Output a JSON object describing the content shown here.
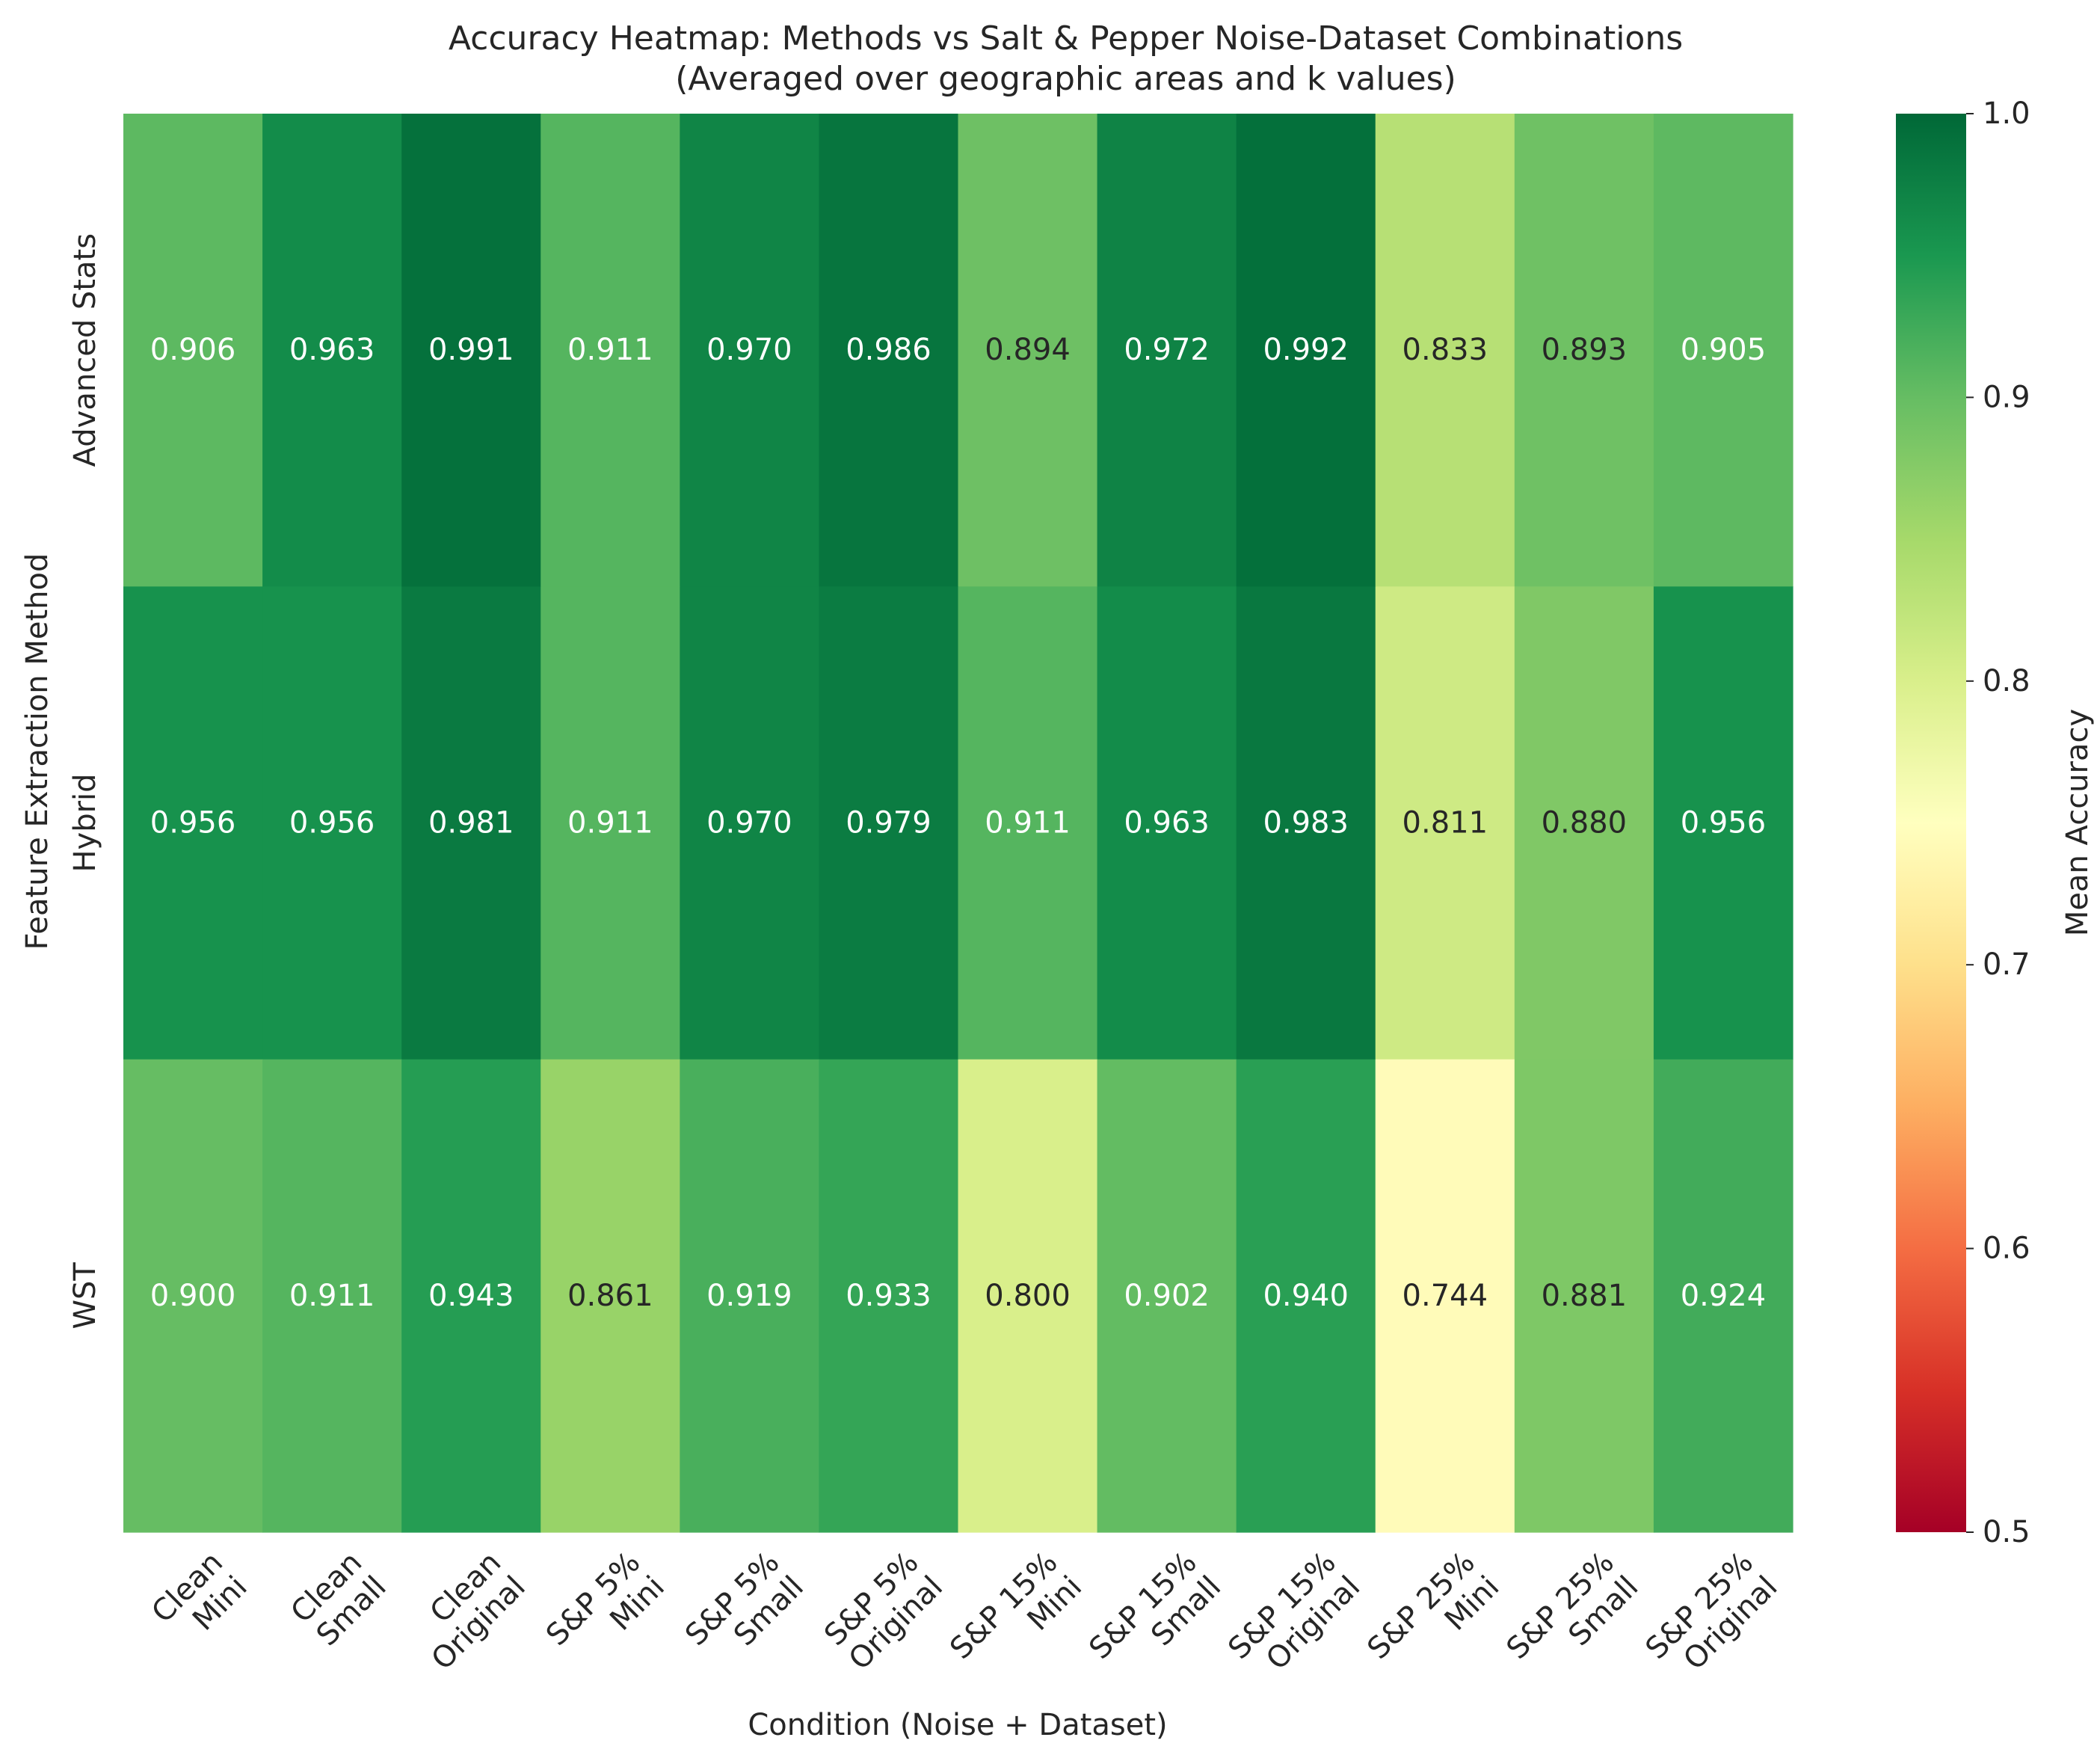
{
  "chart_data": {
    "type": "heatmap",
    "title": "Accuracy Heatmap: Methods vs Salt & Pepper Noise-Dataset Combinations",
    "subtitle": "(Averaged over geographic areas and k values)",
    "xlabel": "Condition (Noise + Dataset)",
    "ylabel": "Feature Extraction Method",
    "colorbar_label": "Mean Accuracy",
    "colormap": "RdYlGn",
    "vmin": 0.5,
    "vmax": 1.0,
    "colorbar_ticks": [
      "0.5",
      "0.6",
      "0.7",
      "0.8",
      "0.9",
      "1.0"
    ],
    "rows": [
      "Advanced Stats",
      "Hybrid",
      "WST"
    ],
    "columns": [
      [
        "Clean",
        "Mini"
      ],
      [
        "Clean",
        "Small"
      ],
      [
        "Clean",
        "Original"
      ],
      [
        "S&P 5%",
        "Mini"
      ],
      [
        "S&P 5%",
        "Small"
      ],
      [
        "S&P 5%",
        "Original"
      ],
      [
        "S&P 15%",
        "Mini"
      ],
      [
        "S&P 15%",
        "Small"
      ],
      [
        "S&P 15%",
        "Original"
      ],
      [
        "S&P 25%",
        "Mini"
      ],
      [
        "S&P 25%",
        "Small"
      ],
      [
        "S&P 25%",
        "Original"
      ]
    ],
    "values": [
      [
        0.906,
        0.963,
        0.991,
        0.911,
        0.97,
        0.986,
        0.894,
        0.972,
        0.992,
        0.833,
        0.893,
        0.905
      ],
      [
        0.956,
        0.956,
        0.981,
        0.911,
        0.97,
        0.979,
        0.911,
        0.963,
        0.983,
        0.811,
        0.88,
        0.956
      ],
      [
        0.9,
        0.911,
        0.943,
        0.861,
        0.919,
        0.933,
        0.8,
        0.902,
        0.94,
        0.744,
        0.881,
        0.924
      ]
    ],
    "annotations": [
      [
        "0.906",
        "0.963",
        "0.991",
        "0.911",
        "0.970",
        "0.986",
        "0.894",
        "0.972",
        "0.992",
        "0.833",
        "0.893",
        "0.905"
      ],
      [
        "0.956",
        "0.956",
        "0.981",
        "0.911",
        "0.970",
        "0.979",
        "0.911",
        "0.963",
        "0.983",
        "0.811",
        "0.880",
        "0.956"
      ],
      [
        "0.900",
        "0.911",
        "0.943",
        "0.861",
        "0.919",
        "0.933",
        "0.800",
        "0.902",
        "0.940",
        "0.744",
        "0.881",
        "0.924"
      ]
    ],
    "grid": false,
    "legend": "colorbar-right"
  }
}
